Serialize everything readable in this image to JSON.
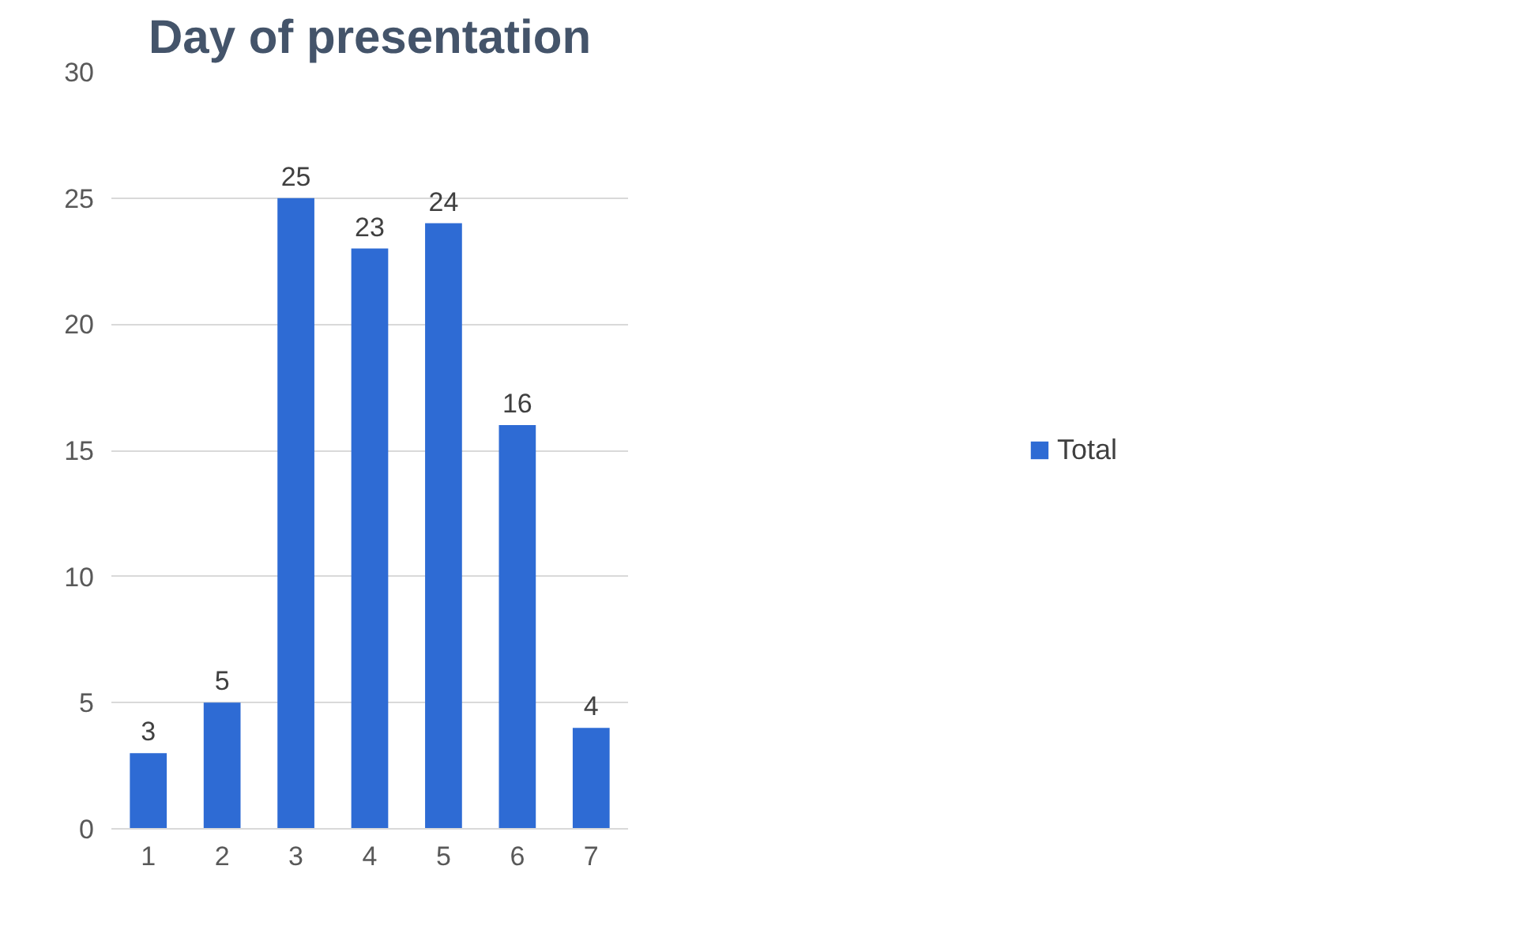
{
  "chart_data": {
    "type": "bar",
    "title": "Day of presentation",
    "categories": [
      "1",
      "2",
      "3",
      "4",
      "5",
      "6",
      "7"
    ],
    "series": [
      {
        "name": "Total",
        "color": "#2e6bd4",
        "values": [
          3,
          5,
          25,
          23,
          24,
          16,
          4
        ]
      }
    ],
    "ylim": [
      0,
      30
    ],
    "yticks": [
      0,
      5,
      10,
      15,
      20,
      25,
      30
    ],
    "grid": "y",
    "legend": "right",
    "data_labels": true
  }
}
